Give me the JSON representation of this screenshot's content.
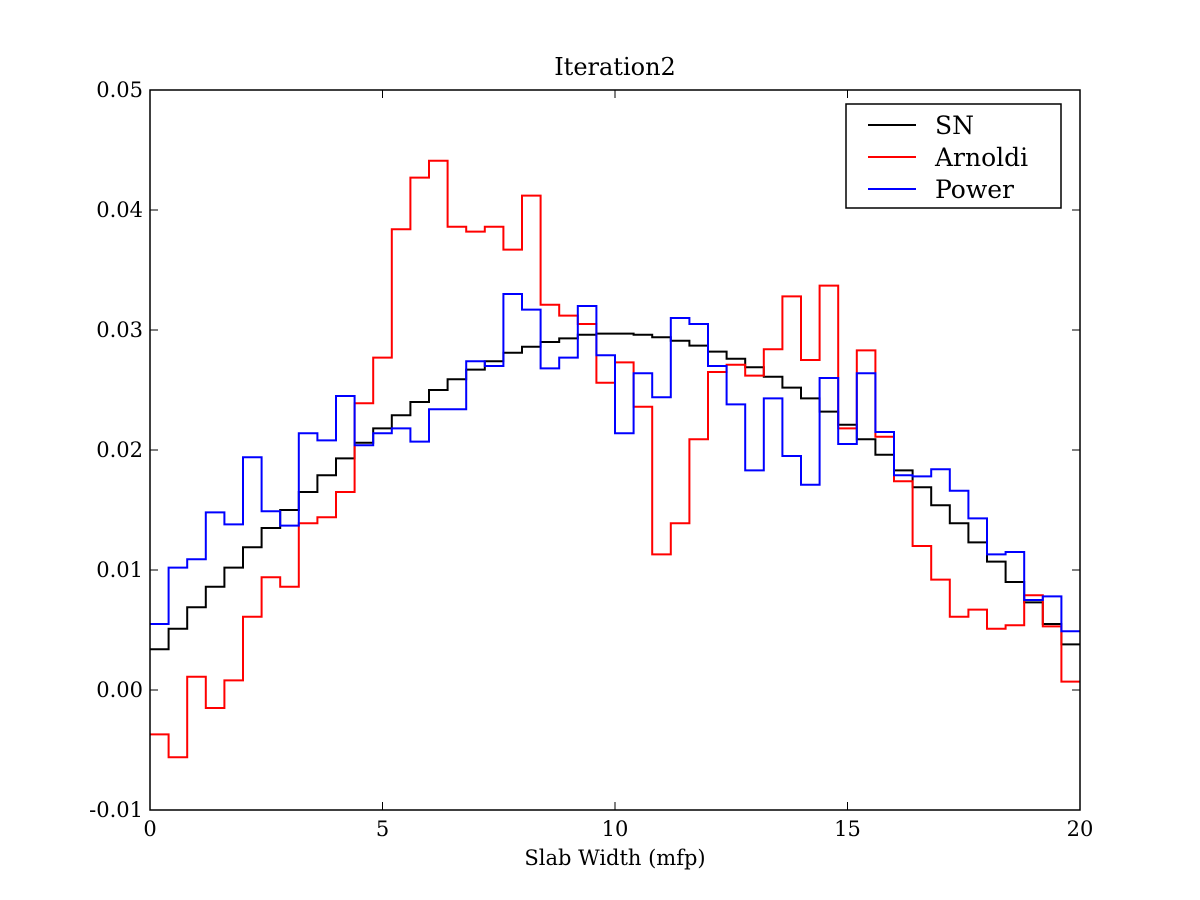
{
  "chart_data": {
    "type": "line",
    "drawstyle": "steps",
    "title": "Iteration2",
    "xlabel": "Slab Width (mfp)",
    "ylabel": "",
    "xlim": [
      0,
      20
    ],
    "ylim": [
      -0.01,
      0.05
    ],
    "xticks": [
      0,
      5,
      10,
      15,
      20
    ],
    "xtick_labels": [
      "0",
      "5",
      "10",
      "15",
      "20"
    ],
    "yticks": [
      -0.01,
      0.0,
      0.01,
      0.02,
      0.03,
      0.04,
      0.05
    ],
    "ytick_labels": [
      "-0.01",
      "0.00",
      "0.01",
      "0.02",
      "0.03",
      "0.04",
      "0.05"
    ],
    "grid": false,
    "legend_position": "top-right",
    "x": [
      0.2,
      0.6,
      1.0,
      1.4,
      1.8,
      2.2,
      2.6,
      3.0,
      3.4,
      3.8,
      4.2,
      4.6,
      5.0,
      5.4,
      5.8,
      6.2,
      6.6,
      7.0,
      7.4,
      7.8,
      8.2,
      8.6,
      9.0,
      9.4,
      9.8,
      10.2,
      10.6,
      11.0,
      11.4,
      11.8,
      12.2,
      12.6,
      13.0,
      13.4,
      13.8,
      14.2,
      14.6,
      15.0,
      15.4,
      15.8,
      16.2,
      16.6,
      17.0,
      17.4,
      17.8,
      18.2,
      18.6,
      19.0,
      19.4,
      19.8
    ],
    "series": [
      {
        "name": "SN",
        "color": "#000000",
        "values": [
          0.0034,
          0.0051,
          0.0069,
          0.0086,
          0.0102,
          0.0119,
          0.0135,
          0.015,
          0.0165,
          0.0179,
          0.0193,
          0.0206,
          0.0218,
          0.0229,
          0.024,
          0.025,
          0.0259,
          0.0267,
          0.0274,
          0.0281,
          0.0286,
          0.029,
          0.0293,
          0.0296,
          0.0297,
          0.0297,
          0.0296,
          0.0294,
          0.0291,
          0.0287,
          0.0282,
          0.0276,
          0.0269,
          0.0261,
          0.0252,
          0.0243,
          0.0232,
          0.0221,
          0.0209,
          0.0196,
          0.0183,
          0.0169,
          0.0154,
          0.0139,
          0.0123,
          0.0107,
          0.009,
          0.0073,
          0.0055,
          0.0038
        ]
      },
      {
        "name": "Arnoldi",
        "color": "#ff0000",
        "values": [
          -0.0037,
          -0.0056,
          0.0011,
          -0.0015,
          0.0008,
          0.0061,
          0.0094,
          0.0086,
          0.0139,
          0.0144,
          0.0165,
          0.0239,
          0.0277,
          0.0384,
          0.0427,
          0.0441,
          0.0386,
          0.0382,
          0.0386,
          0.0367,
          0.0412,
          0.0321,
          0.0312,
          0.0305,
          0.0256,
          0.0273,
          0.0236,
          0.0113,
          0.0139,
          0.0209,
          0.0265,
          0.0271,
          0.0262,
          0.0284,
          0.0328,
          0.0275,
          0.0337,
          0.0218,
          0.0283,
          0.0211,
          0.0174,
          0.012,
          0.0092,
          0.0061,
          0.0067,
          0.0051,
          0.0054,
          0.0079,
          0.0053,
          0.0007
        ]
      },
      {
        "name": "Power",
        "color": "#0000ff",
        "values": [
          0.0055,
          0.0102,
          0.0109,
          0.0148,
          0.0138,
          0.0194,
          0.0149,
          0.0137,
          0.0214,
          0.0208,
          0.0245,
          0.0204,
          0.0214,
          0.0218,
          0.0207,
          0.0234,
          0.0234,
          0.0274,
          0.027,
          0.033,
          0.0317,
          0.0268,
          0.0277,
          0.032,
          0.0279,
          0.0214,
          0.0264,
          0.0244,
          0.031,
          0.0305,
          0.027,
          0.0238,
          0.0183,
          0.0243,
          0.0195,
          0.0171,
          0.026,
          0.0205,
          0.0264,
          0.0215,
          0.0179,
          0.0178,
          0.0184,
          0.0166,
          0.0143,
          0.0113,
          0.0115,
          0.0075,
          0.0078,
          0.0049
        ]
      }
    ]
  }
}
